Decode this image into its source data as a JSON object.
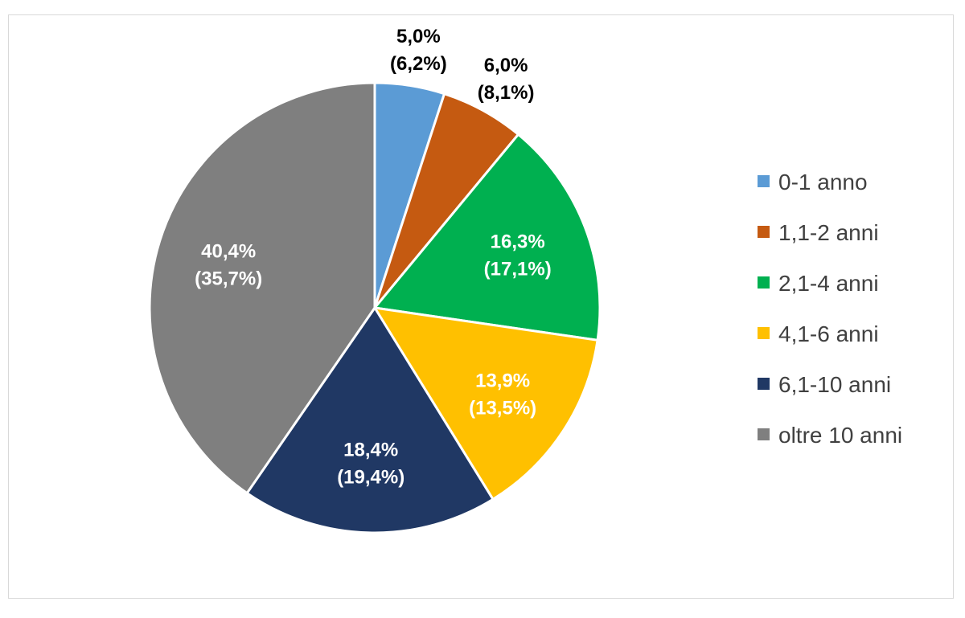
{
  "chart_data": {
    "type": "pie",
    "title": "",
    "legend_position": "right",
    "slices": [
      {
        "name": "0-1 anno",
        "value": 5.0,
        "label": "5,0%",
        "label2": "(6,2%)",
        "color": "#5b9bd5",
        "label_color": "#000000",
        "label_outside": true
      },
      {
        "name": "1,1-2 anni",
        "value": 6.0,
        "label": "6,0%",
        "label2": "(8,1%)",
        "color": "#c55a11",
        "label_color": "#000000",
        "label_outside": true
      },
      {
        "name": "2,1-4 anni",
        "value": 16.3,
        "label": "16,3%",
        "label2": "(17,1%)",
        "color": "#00b050",
        "label_color": "#ffffff",
        "label_outside": false
      },
      {
        "name": "4,1-6 anni",
        "value": 13.9,
        "label": "13,9%",
        "label2": "(13,5%)",
        "color": "#ffc000",
        "label_color": "#ffffff",
        "label_outside": false
      },
      {
        "name": "6,1-10 anni",
        "value": 18.4,
        "label": "18,4%",
        "label2": "(19,4%)",
        "color": "#203864",
        "label_color": "#ffffff",
        "label_outside": false
      },
      {
        "name": "oltre 10 anni",
        "value": 40.4,
        "label": "40,4%",
        "label2": "(35,7%)",
        "color": "#7f7f7f",
        "label_color": "#ffffff",
        "label_outside": false
      }
    ]
  }
}
